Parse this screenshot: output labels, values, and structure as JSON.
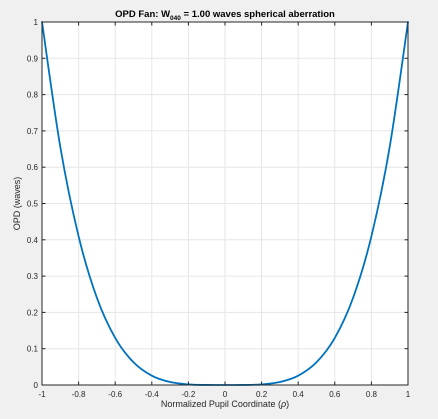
{
  "window": {
    "background_color": "#f0f0f0"
  },
  "chart_data": {
    "type": "line",
    "title_parts": {
      "prefix": "OPD Fan: W",
      "subscript": "040",
      "suffix": " = 1.00 waves spherical aberration"
    },
    "xlabel_parts": {
      "prefix": "Normalized Pupil Coordinate (",
      "symbol": "ρ",
      "suffix": ")"
    },
    "ylabel": "OPD (waves)",
    "xlim": [
      -1,
      1
    ],
    "ylim": [
      0,
      1
    ],
    "grid": true,
    "x_ticks": [
      -1,
      -0.8,
      -0.6,
      -0.4,
      -0.2,
      0,
      0.2,
      0.4,
      0.6,
      0.8,
      1
    ],
    "x_tick_labels": [
      "-1",
      "-0.8",
      "-0.6",
      "-0.4",
      "-0.2",
      "0",
      "0.2",
      "0.4",
      "0.6",
      "0.8",
      "1"
    ],
    "y_ticks": [
      0,
      0.1,
      0.2,
      0.3,
      0.4,
      0.5,
      0.6,
      0.7,
      0.8,
      0.9,
      1
    ],
    "y_tick_labels": [
      "0",
      "0.1",
      "0.2",
      "0.3",
      "0.4",
      "0.5",
      "0.6",
      "0.7",
      "0.8",
      "0.9",
      "1"
    ],
    "series": [
      {
        "color": "#0072bd",
        "x": [
          -1,
          -0.9,
          -0.8,
          -0.7,
          -0.6,
          -0.5,
          -0.4,
          -0.3,
          -0.2,
          -0.1,
          0,
          0.1,
          0.2,
          0.3,
          0.4,
          0.5,
          0.6,
          0.7,
          0.8,
          0.9,
          1
        ],
        "y": [
          1,
          0.6561,
          0.4096,
          0.2401,
          0.1296,
          0.0625,
          0.0256,
          0.0081,
          0.0016,
          0.0001,
          0,
          0.0001,
          0.0016,
          0.0081,
          0.0256,
          0.0625,
          0.1296,
          0.2401,
          0.4096,
          0.6561,
          1
        ]
      }
    ],
    "colors": {
      "axes_background": "#ffffff",
      "axes_line": "#262626",
      "grid": "#e6e6e6"
    }
  }
}
